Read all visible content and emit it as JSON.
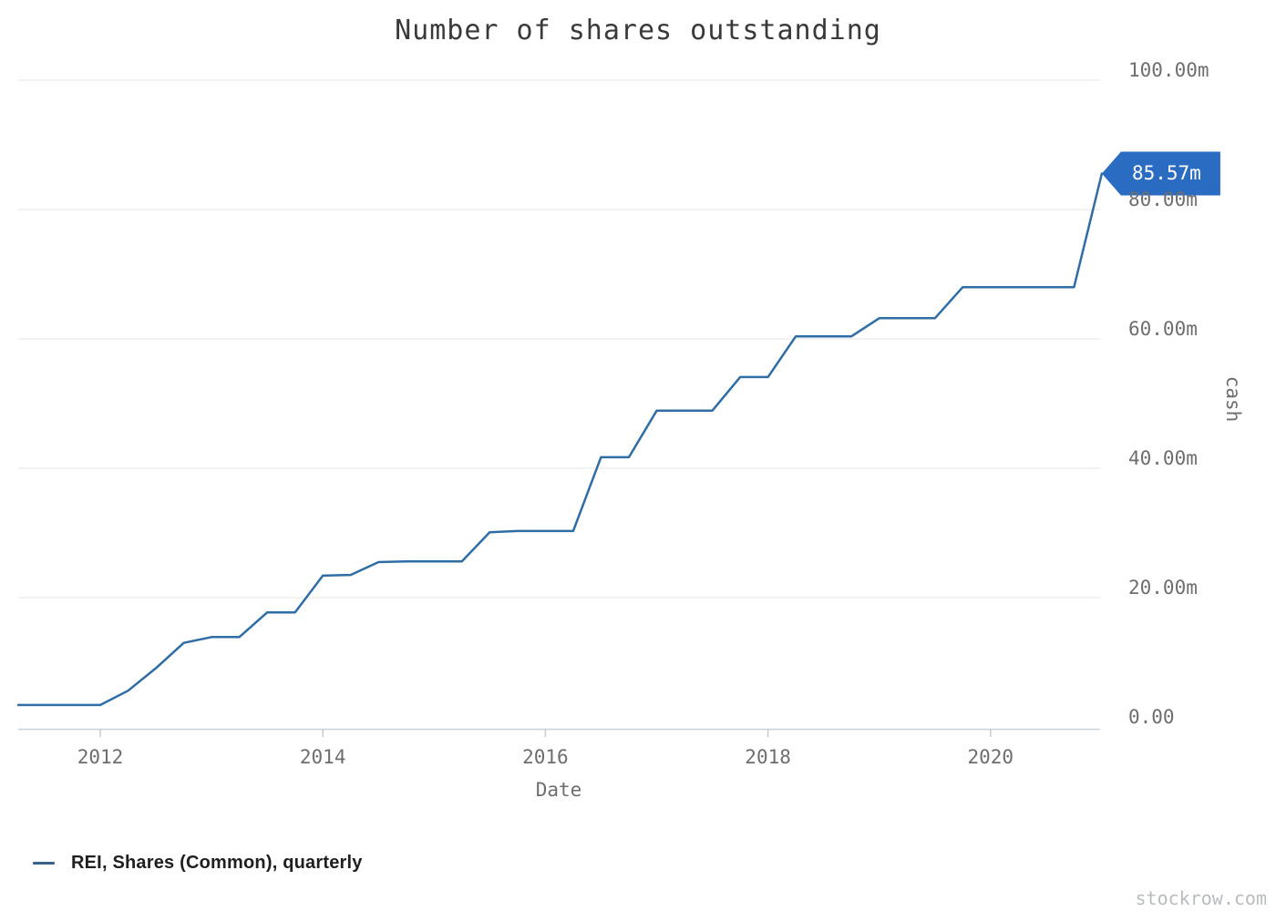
{
  "watermark": "stockrow.com",
  "chart_data": {
    "type": "line",
    "title": "Number of shares outstanding",
    "xlabel": "Date",
    "ylabel": "cash",
    "grid": "horizontal-only",
    "legend_position": "bottom-left",
    "legend": [
      {
        "label": "REI, Shares (Common), quarterly",
        "color": "#39618c"
      }
    ],
    "line_color": "#2e6da5",
    "flag_color": "#2a6cc2",
    "last_point_flag": "85.57m",
    "ylim": [
      0,
      100
    ],
    "xlim": [
      2011.25,
      2021.0
    ],
    "y_ticks": [
      {
        "value": 0,
        "label": "0.00"
      },
      {
        "value": 20,
        "label": "20.00m"
      },
      {
        "value": 40,
        "label": "40.00m"
      },
      {
        "value": 60,
        "label": "60.00m"
      },
      {
        "value": 80,
        "label": "80.00m"
      },
      {
        "value": 100,
        "label": "100.00m"
      }
    ],
    "x_ticks": [
      {
        "value": 2012,
        "label": "2012"
      },
      {
        "value": 2014,
        "label": "2014"
      },
      {
        "value": 2016,
        "label": "2016"
      },
      {
        "value": 2018,
        "label": "2018"
      },
      {
        "value": 2020,
        "label": "2020"
      }
    ],
    "series": [
      {
        "name": "REI, Shares (Common), quarterly",
        "unit_suffix": "m",
        "x": [
          2011.25,
          2011.5,
          2011.75,
          2012.0,
          2012.25,
          2012.5,
          2012.75,
          2013.0,
          2013.25,
          2013.5,
          2013.75,
          2014.0,
          2014.25,
          2014.5,
          2014.75,
          2015.0,
          2015.25,
          2015.5,
          2015.75,
          2016.0,
          2016.25,
          2016.5,
          2016.75,
          2017.0,
          2017.25,
          2017.5,
          2017.75,
          2018.0,
          2018.25,
          2018.5,
          2018.75,
          2019.0,
          2019.25,
          2019.5,
          2019.75,
          2020.0,
          2020.25,
          2020.5,
          2020.75,
          2021.0
        ],
        "values": [
          3.4,
          3.4,
          3.4,
          3.4,
          5.6,
          9.1,
          13.0,
          13.9,
          13.9,
          17.7,
          17.7,
          23.4,
          23.5,
          25.5,
          25.6,
          25.6,
          25.6,
          30.1,
          30.3,
          30.3,
          30.3,
          41.7,
          41.7,
          48.9,
          48.9,
          48.9,
          54.1,
          54.1,
          60.4,
          60.4,
          60.4,
          63.2,
          63.2,
          63.2,
          68.0,
          68.0,
          68.0,
          68.0,
          68.0,
          85.57
        ]
      }
    ]
  }
}
